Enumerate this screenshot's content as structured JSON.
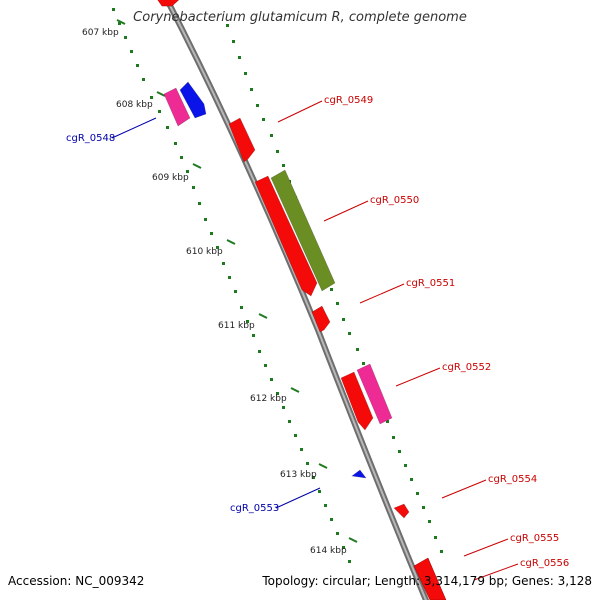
{
  "title": "Corynebacterium glutamicum R, complete genome",
  "footer": {
    "accession": "Accession: NC_009342",
    "summary": "Topology: circular; Length: 3,314,179 bp; Genes: 3,128"
  },
  "colors": {
    "backbone": "#8a8a8a",
    "tick": "#1e7a1e",
    "gene_red": "#f50a0a",
    "gene_pink": "#ee2b95",
    "gene_blue": "#0a14e8",
    "gene_olive": "#6a8e23",
    "label_red": "#cc0000",
    "label_blue": "#0000aa"
  },
  "ticks": [
    "607 kbp",
    "608 kbp",
    "609 kbp",
    "610 kbp",
    "611 kbp",
    "612 kbp",
    "613 kbp",
    "614 kbp"
  ],
  "genes": [
    {
      "name": "cgR_0548",
      "color": "blue"
    },
    {
      "name": "cgR_0549",
      "color": "red"
    },
    {
      "name": "cgR_0550",
      "color": "red"
    },
    {
      "name": "cgR_0551",
      "color": "red"
    },
    {
      "name": "cgR_0552",
      "color": "red"
    },
    {
      "name": "cgR_0553",
      "color": "blue"
    },
    {
      "name": "cgR_0554",
      "color": "red"
    },
    {
      "name": "cgR_0555",
      "color": "red"
    },
    {
      "name": "cgR_0556",
      "color": "red"
    }
  ]
}
